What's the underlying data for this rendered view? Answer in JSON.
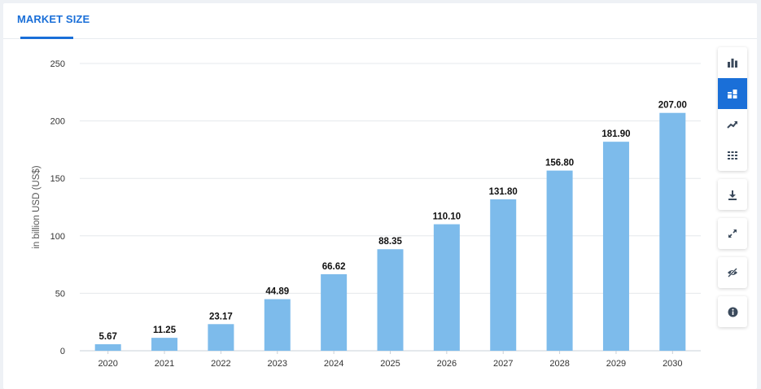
{
  "header": {
    "title": "MARKET SIZE"
  },
  "toolbar": {
    "accent": "#1a6fd8",
    "icon_color": "#3b4a5c",
    "chart_types": [
      {
        "icon": "bar-chart-icon",
        "active": false
      },
      {
        "icon": "stacked-bar-icon",
        "active": true
      },
      {
        "icon": "trend-line-icon",
        "active": false
      },
      {
        "icon": "table-grid-icon",
        "active": false
      }
    ],
    "actions": [
      {
        "icon": "download-icon"
      },
      {
        "icon": "expand-icon"
      },
      {
        "icon": "hide-eye-icon"
      },
      {
        "icon": "info-icon"
      }
    ]
  },
  "chart_data": {
    "type": "bar",
    "categories": [
      "2020",
      "2021",
      "2022",
      "2023",
      "2024",
      "2025",
      "2026",
      "2027",
      "2028",
      "2029",
      "2030"
    ],
    "values": [
      5.67,
      11.25,
      23.17,
      44.89,
      66.62,
      88.35,
      110.1,
      131.8,
      156.8,
      181.9,
      207.0
    ],
    "labels": [
      "5.67",
      "11.25",
      "23.17",
      "44.89",
      "66.62",
      "88.35",
      "110.10",
      "131.80",
      "156.80",
      "181.90",
      "207.00"
    ],
    "ylabel": "in billion USD (US$)",
    "ylim": [
      0,
      250
    ],
    "yticks": [
      "0",
      "50",
      "100",
      "150",
      "200",
      "250"
    ],
    "grid": true,
    "bar_color": "#7dbbeb"
  }
}
